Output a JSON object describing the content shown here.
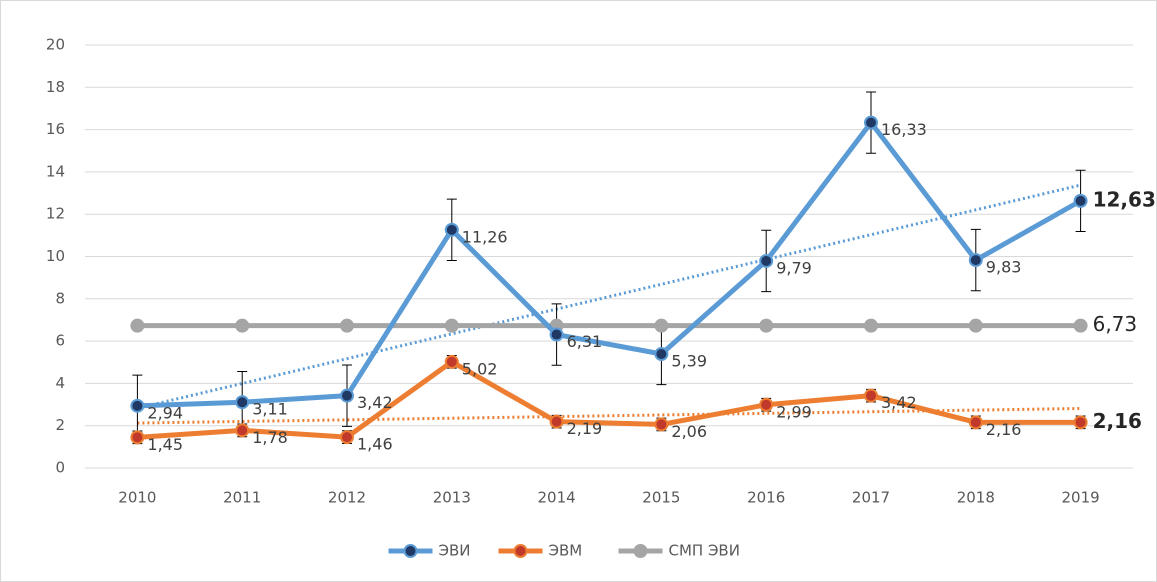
{
  "chart_data": {
    "type": "line",
    "categories": [
      "2010",
      "2011",
      "2012",
      "2013",
      "2014",
      "2015",
      "2016",
      "2017",
      "2018",
      "2019"
    ],
    "series": [
      {
        "name": "ЭВИ",
        "color": "#5b9bd5",
        "marker_color": "#1f3864",
        "trendline": true,
        "values": [
          2.94,
          3.11,
          3.42,
          11.26,
          6.31,
          5.39,
          9.79,
          16.33,
          9.83,
          12.63
        ],
        "value_labels": [
          "2,94",
          "3,11",
          "3,42",
          "11,26",
          "6,31",
          "5,39",
          "9,79",
          "16,33",
          "9,83",
          "12,63"
        ],
        "errors": [
          1.45,
          1.45,
          1.45,
          1.45,
          1.45,
          1.45,
          1.45,
          1.45,
          1.45,
          1.45
        ]
      },
      {
        "name": "ЭВМ",
        "color": "#ed7d31",
        "marker_color": "#c0392b",
        "trendline": true,
        "values": [
          1.45,
          1.78,
          1.46,
          5.02,
          2.19,
          2.06,
          2.99,
          3.42,
          2.16,
          2.16
        ],
        "value_labels": [
          "1,45",
          "1,78",
          "1,46",
          "5,02",
          "2,19",
          "2,06",
          "2,99",
          "3,42",
          "2,16",
          "2,16"
        ],
        "errors": [
          0.3,
          0.3,
          0.3,
          0.3,
          0.3,
          0.3,
          0.3,
          0.3,
          0.3,
          0.3
        ]
      },
      {
        "name": "СМП ЭВИ",
        "color": "#a5a5a5",
        "marker_color": "#a5a5a5",
        "trendline": false,
        "values": [
          6.73,
          6.73,
          6.73,
          6.73,
          6.73,
          6.73,
          6.73,
          6.73,
          6.73,
          6.73
        ],
        "value_labels": [
          null,
          null,
          null,
          null,
          null,
          null,
          null,
          null,
          null,
          "6,73"
        ]
      }
    ],
    "ylim": [
      0,
      20
    ],
    "yticks": [
      0,
      2,
      4,
      6,
      8,
      10,
      12,
      14,
      16,
      18,
      20
    ],
    "grid": true,
    "legend": "bottom"
  }
}
